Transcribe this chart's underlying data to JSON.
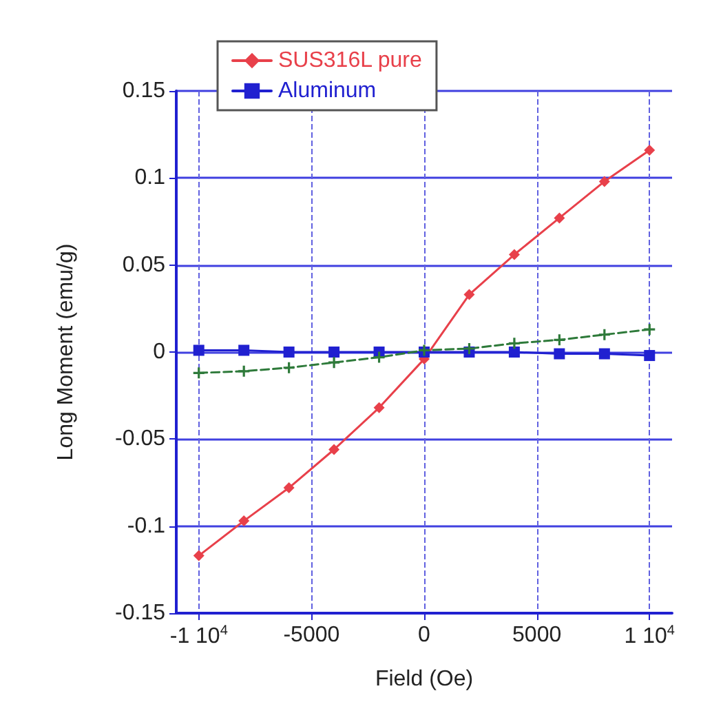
{
  "chart_data": {
    "type": "line",
    "xlabel": "Field (Oe)",
    "ylabel": "Long Moment (emu/g)",
    "x": [
      -10000,
      -8000,
      -6000,
      -4000,
      -2000,
      0,
      2000,
      4000,
      6000,
      8000,
      10000
    ],
    "series": [
      {
        "name": "SUS316L pure",
        "color": "#e8404a",
        "marker": "diamond",
        "line_style": "solid",
        "values": [
          -0.117,
          -0.097,
          -0.078,
          -0.056,
          -0.032,
          -0.004,
          0.033,
          0.056,
          0.077,
          0.098,
          0.116
        ]
      },
      {
        "name": "Aluminum",
        "color": "#2020d0",
        "marker": "square",
        "line_style": "solid",
        "values": [
          0.001,
          0.001,
          0.0,
          0.0,
          0.0,
          0.0,
          0.0,
          0.0,
          -0.001,
          -0.001,
          -0.002
        ]
      },
      {
        "color": "#2e7a3a",
        "marker": "cross",
        "line_style": "dashed",
        "values": [
          -0.012,
          -0.011,
          -0.009,
          -0.006,
          -0.003,
          0.001,
          0.002,
          0.005,
          0.007,
          0.01,
          0.013
        ]
      }
    ],
    "xlim": [
      -11000,
      11000
    ],
    "xticks": [
      {
        "value": -10000,
        "label": "-1 10$^{4}$"
      },
      -5000,
      0,
      5000,
      {
        "value": 10000,
        "label": "1 10$^{4}$"
      }
    ],
    "ylim": [
      -0.15,
      0.15
    ],
    "yticks": [
      -0.15,
      -0.1,
      -0.05,
      0,
      0.05,
      0.1,
      0.15
    ],
    "grid": true,
    "legend": "top"
  }
}
